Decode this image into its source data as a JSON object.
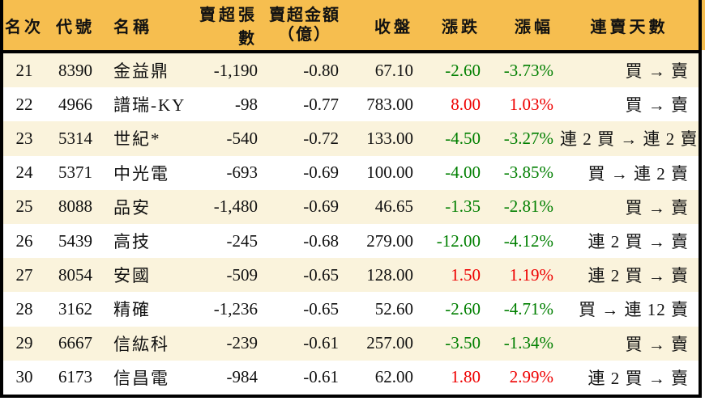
{
  "table": {
    "headers": {
      "rank": "名次",
      "code": "代號",
      "name": "名稱",
      "sell_volume": "賣超張數",
      "sell_amount_line1": "賣超金額",
      "sell_amount_line2": "（億）",
      "close": "收盤",
      "change": "漲跌",
      "change_pct": "漲幅",
      "streak": "連賣天數"
    },
    "rows": [
      {
        "rank": "21",
        "code": "8390",
        "name": "金益鼎",
        "sell_volume": "-1,190",
        "sell_amount": "-0.80",
        "close": "67.10",
        "change": "-2.60",
        "change_pct": "-3.73%",
        "streak": "買 → 賣",
        "trend": "down"
      },
      {
        "rank": "22",
        "code": "4966",
        "name": "譜瑞-KY",
        "sell_volume": "-98",
        "sell_amount": "-0.77",
        "close": "783.00",
        "change": "8.00",
        "change_pct": "1.03%",
        "streak": "買 → 賣",
        "trend": "up"
      },
      {
        "rank": "23",
        "code": "5314",
        "name": "世紀*",
        "sell_volume": "-540",
        "sell_amount": "-0.72",
        "close": "133.00",
        "change": "-4.50",
        "change_pct": "-3.27%",
        "streak": "連 2 買 → 連 2 賣",
        "trend": "down"
      },
      {
        "rank": "24",
        "code": "5371",
        "name": "中光電",
        "sell_volume": "-693",
        "sell_amount": "-0.69",
        "close": "100.00",
        "change": "-4.00",
        "change_pct": "-3.85%",
        "streak": "買 → 連 2 賣",
        "trend": "down"
      },
      {
        "rank": "25",
        "code": "8088",
        "name": "品安",
        "sell_volume": "-1,480",
        "sell_amount": "-0.69",
        "close": "46.65",
        "change": "-1.35",
        "change_pct": "-2.81%",
        "streak": "買 → 賣",
        "trend": "down"
      },
      {
        "rank": "26",
        "code": "5439",
        "name": "高技",
        "sell_volume": "-245",
        "sell_amount": "-0.68",
        "close": "279.00",
        "change": "-12.00",
        "change_pct": "-4.12%",
        "streak": "連 2 買 → 賣",
        "trend": "down"
      },
      {
        "rank": "27",
        "code": "8054",
        "name": "安國",
        "sell_volume": "-509",
        "sell_amount": "-0.65",
        "close": "128.00",
        "change": "1.50",
        "change_pct": "1.19%",
        "streak": "連 2 買 → 賣",
        "trend": "up"
      },
      {
        "rank": "28",
        "code": "3162",
        "name": "精確",
        "sell_volume": "-1,236",
        "sell_amount": "-0.65",
        "close": "52.60",
        "change": "-2.60",
        "change_pct": "-4.71%",
        "streak": "買 → 連 12 賣",
        "trend": "down"
      },
      {
        "rank": "29",
        "code": "6667",
        "name": "信紘科",
        "sell_volume": "-239",
        "sell_amount": "-0.61",
        "close": "257.00",
        "change": "-3.50",
        "change_pct": "-1.34%",
        "streak": "買 → 賣",
        "trend": "down"
      },
      {
        "rank": "30",
        "code": "6173",
        "name": "信昌電",
        "sell_volume": "-984",
        "sell_amount": "-0.61",
        "close": "62.00",
        "change": "1.80",
        "change_pct": "2.99%",
        "streak": "連 2 買 → 賣",
        "trend": "up"
      }
    ]
  },
  "colors": {
    "header_bg": "#F6BE4F",
    "row_stripe_bg": "#FAF3DC",
    "row_bg": "#FFFFFF",
    "border": "#000000",
    "positive_change": "#EE0000",
    "negative_change": "#007F00"
  }
}
